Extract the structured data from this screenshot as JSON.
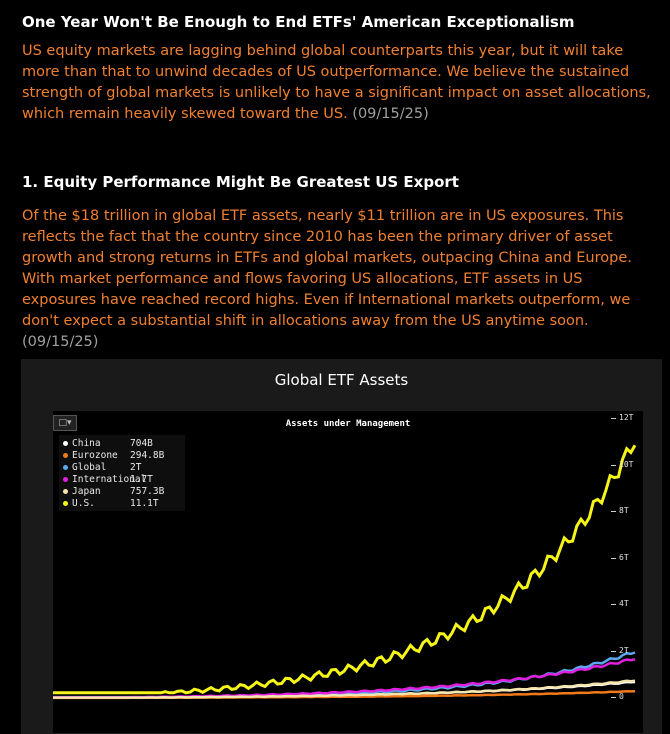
{
  "article": {
    "title": "One Year Won't Be Enough to End ETFs' American Exceptionalism",
    "intro": "US equity markets are lagging behind global counterparts this year, but it will take more than that to unwind decades of US outperformance. We believe the sustained strength of global markets is unlikely to have a significant impact on asset allocations, which remain heavily skewed toward the US.",
    "intro_date": "(09/15/25)",
    "section1_title": "1. Equity Performance Might Be Greatest US Export",
    "section1_body": "Of the $18 trillion in global ETF assets, nearly $11 trillion are in US exposures. This reflects the fact that the country since 2010 has been the primary driver of asset growth and strong returns in ETFs and global markets, outpacing China and Europe. With market performance and flows favoring US allocations, ETF assets in US exposures have reached record highs. Even if International markets outperform, we don't expect a substantial shift in allocations away from the US anytime soon.",
    "section1_date": "(09/15/25)"
  },
  "chart_panel": {
    "title": "Global ETF Assets",
    "tool_icon": "chart-tool-icon"
  },
  "chart_data": {
    "type": "line",
    "title": "Assets under Management",
    "ylim": [
      0,
      12
    ],
    "yticks": [
      "0",
      "2T",
      "4T",
      "6T",
      "8T",
      "10T",
      "12T"
    ],
    "legend_placement": "top-left",
    "series": [
      {
        "name": "China",
        "value_label": "704B",
        "color": "#ffffff",
        "last": 0.704
      },
      {
        "name": "Eurozone",
        "value_label": "294.8B",
        "color": "#f07a1a",
        "last": 0.295
      },
      {
        "name": "Global",
        "value_label": "2T",
        "color": "#5aa9f0",
        "last": 2.0
      },
      {
        "name": "International",
        "value_label": "1.7T",
        "color": "#e020e0",
        "last": 1.7
      },
      {
        "name": "Japan",
        "value_label": "757.3B",
        "color": "#f5e6b0",
        "last": 0.757
      },
      {
        "name": "U.S.",
        "value_label": "11.1T",
        "color": "#f5f51a",
        "last": 11.1
      }
    ]
  }
}
